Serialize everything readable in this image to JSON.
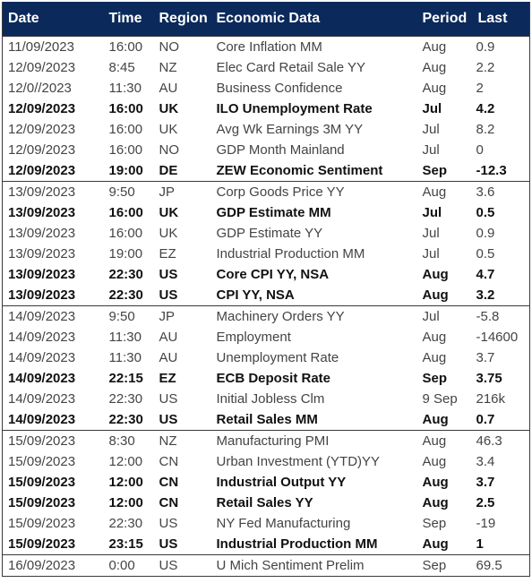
{
  "headers": [
    "Date",
    "Time",
    "Region",
    "Economic Data",
    "Period",
    "Last"
  ],
  "groups": [
    {
      "rows": [
        {
          "date": "11/09/2023",
          "time": "16:00",
          "region": "NO",
          "data": "Core Inflation MM",
          "period": "Aug",
          "last": "0.9",
          "bold": false
        },
        {
          "date": "12/09/2023",
          "time": "8:45",
          "region": "NZ",
          "data": "Elec Card Retail Sale YY",
          "period": "Aug",
          "last": "2.2",
          "bold": false
        },
        {
          "date": "12/0//2023",
          "time": "11:30",
          "region": "AU",
          "data": "Business Confidence",
          "period": "Aug",
          "last": "2",
          "bold": false
        },
        {
          "date": "12/09/2023",
          "time": "16:00",
          "region": "UK",
          "data": "ILO Unemployment Rate",
          "period": "Jul",
          "last": "4.2",
          "bold": true
        },
        {
          "date": "12/09/2023",
          "time": "16:00",
          "region": "UK",
          "data": "Avg Wk Earnings 3M YY",
          "period": "Jul",
          "last": "8.2",
          "bold": false
        },
        {
          "date": "12/09/2023",
          "time": "16:00",
          "region": "NO",
          "data": "GDP Month Mainland",
          "period": "Jul",
          "last": "0",
          "bold": false
        },
        {
          "date": "12/09/2023",
          "time": "19:00",
          "region": "DE",
          "data": "ZEW Economic Sentiment",
          "period": "Sep",
          "last": "-12.3",
          "bold": true
        }
      ]
    },
    {
      "rows": [
        {
          "date": "13/09/2023",
          "time": "9:50",
          "region": "JP",
          "data": "Corp Goods Price YY",
          "period": "Aug",
          "last": "3.6",
          "bold": false
        },
        {
          "date": "13/09/2023",
          "time": "16:00",
          "region": "UK",
          "data": "GDP Estimate MM",
          "period": "Jul",
          "last": "0.5",
          "bold": true
        },
        {
          "date": "13/09/2023",
          "time": "16:00",
          "region": "UK",
          "data": "GDP Estimate YY",
          "period": "Jul",
          "last": "0.9",
          "bold": false
        },
        {
          "date": "13/09/2023",
          "time": "19:00",
          "region": "EZ",
          "data": "Industrial Production MM",
          "period": "Jul",
          "last": "0.5",
          "bold": false
        },
        {
          "date": "13/09/2023",
          "time": "22:30",
          "region": "US",
          "data": "Core CPI YY, NSA",
          "period": "Aug",
          "last": "4.7",
          "bold": true
        },
        {
          "date": "13/09/2023",
          "time": "22:30",
          "region": "US",
          "data": "CPI YY, NSA",
          "period": "Aug",
          "last": "3.2",
          "bold": true
        }
      ]
    },
    {
      "rows": [
        {
          "date": "14/09/2023",
          "time": "9:50",
          "region": "JP",
          "data": "Machinery Orders YY",
          "period": "Jul",
          "last": "-5.8",
          "bold": false
        },
        {
          "date": "14/09/2023",
          "time": "11:30",
          "region": "AU",
          "data": "Employment",
          "period": "Aug",
          "last": "-14600",
          "bold": false
        },
        {
          "date": "14/09/2023",
          "time": "11:30",
          "region": "AU",
          "data": "Unemployment Rate",
          "period": "Aug",
          "last": "3.7",
          "bold": false
        },
        {
          "date": "14/09/2023",
          "time": "22:15",
          "region": "EZ",
          "data": "ECB Deposit Rate",
          "period": "Sep",
          "last": "3.75",
          "bold": true
        },
        {
          "date": "14/09/2023",
          "time": "22:30",
          "region": "US",
          "data": "Initial Jobless Clm",
          "period": "9 Sep",
          "last": "216k",
          "bold": false
        },
        {
          "date": "14/09/2023",
          "time": "22:30",
          "region": "US",
          "data": "Retail Sales MM",
          "period": "Aug",
          "last": "0.7",
          "bold": true
        }
      ]
    },
    {
      "rows": [
        {
          "date": "15/09/2023",
          "time": "8:30",
          "region": "NZ",
          "data": "Manufacturing PMI",
          "period": "Aug",
          "last": "46.3",
          "bold": false
        },
        {
          "date": "15/09/2023",
          "time": "12:00",
          "region": "CN",
          "data": "Urban Investment (YTD)YY",
          "period": "Aug",
          "last": "3.4",
          "bold": false
        },
        {
          "date": "15/09/2023",
          "time": "12:00",
          "region": "CN",
          "data": "Industrial Output YY",
          "period": "Aug",
          "last": "3.7",
          "bold": true
        },
        {
          "date": "15/09/2023",
          "time": "12:00",
          "region": "CN",
          "data": "Retail Sales YY",
          "period": "Aug",
          "last": "2.5",
          "bold": true
        },
        {
          "date": "15/09/2023",
          "time": "22:30",
          "region": "US",
          "data": "NY Fed Manufacturing",
          "period": "Sep",
          "last": "-19",
          "bold": false
        },
        {
          "date": "15/09/2023",
          "time": "23:15",
          "region": "US",
          "data": "Industrial Production MM",
          "period": "Aug",
          "last": "1",
          "bold": true
        }
      ]
    },
    {
      "rows": [
        {
          "date": "16/09/2023",
          "time": "0:00",
          "region": "US",
          "data": "U Mich Sentiment Prelim",
          "period": "Sep",
          "last": "69.5",
          "bold": false
        }
      ]
    }
  ],
  "colors": {
    "header_bg": "#0b2a5b",
    "header_text": "#ffffff",
    "border": "#3a3a3a"
  }
}
